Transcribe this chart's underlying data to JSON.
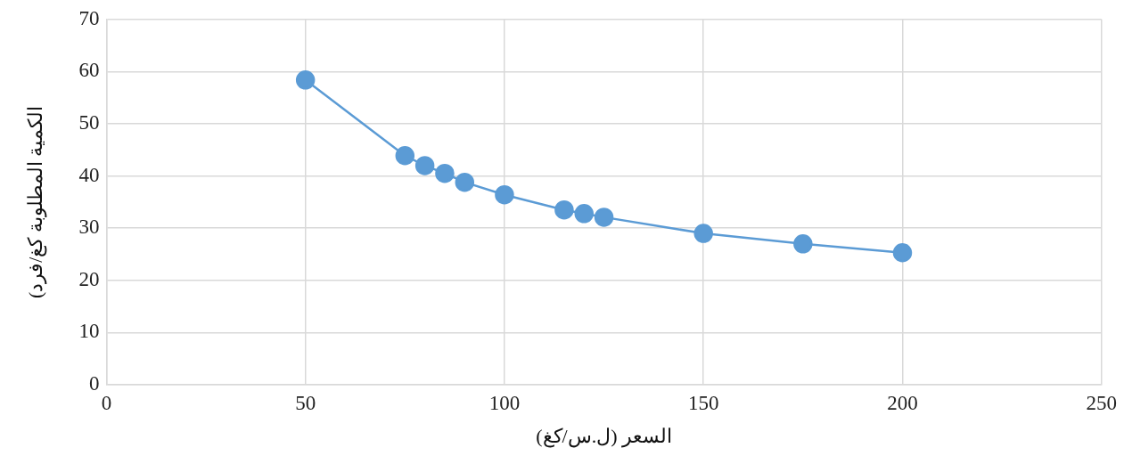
{
  "chart_data": {
    "type": "line",
    "xlabel": "السعر (ل.س/كغ)",
    "ylabel": "الكمية المطلوبة كغ/فرد)",
    "x": [
      50,
      75,
      80,
      85,
      90,
      100,
      115,
      120,
      125,
      150,
      175,
      200
    ],
    "series": [
      {
        "color": "#5b9bd5",
        "values": [
          58.4,
          43.9,
          42.0,
          40.5,
          38.8,
          36.4,
          33.5,
          32.8,
          32.1,
          29.0,
          27.0,
          25.3
        ]
      }
    ],
    "xlim": [
      0,
      250
    ],
    "xticks": [
      0,
      50,
      100,
      150,
      200,
      250
    ],
    "ylim": [
      0,
      70
    ],
    "yticks": [
      0,
      10,
      20,
      30,
      40,
      50,
      60,
      70
    ],
    "grid": true,
    "marker": "circle",
    "line_style": "solid"
  }
}
